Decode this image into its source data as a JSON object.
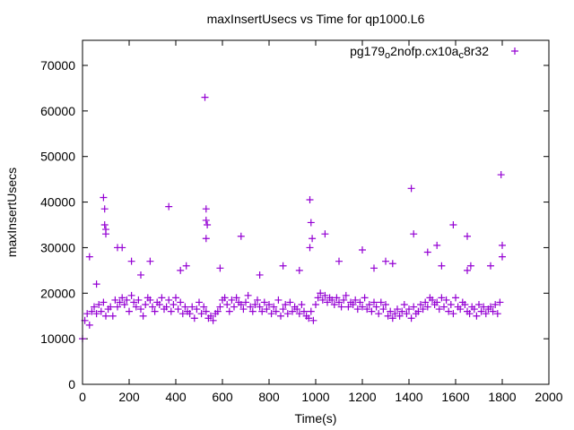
{
  "chart_data": {
    "type": "scatter",
    "title": "maxInsertUsecs vs Time for qp1000.L6",
    "xlabel": "Time(s)",
    "ylabel": "maxInsertUsecs",
    "xlim": [
      0,
      2000
    ],
    "ylim": [
      0,
      75000
    ],
    "xticks": [
      0,
      200,
      400,
      600,
      800,
      1000,
      1200,
      1400,
      1600,
      1800,
      2000
    ],
    "yticks": [
      0,
      10000,
      20000,
      30000,
      40000,
      50000,
      60000,
      70000
    ],
    "grid": false,
    "legend_position": "top-right",
    "series": [
      {
        "name_parts": [
          "pg179",
          "o",
          "2nofp.cx10a",
          "c",
          "8r32"
        ],
        "name": "pg179_o2nofp.cx10a_c8r32",
        "color": "#9400d3",
        "marker": "plus",
        "x_start": 0,
        "x_step": 10,
        "values": [
          10000,
          14000,
          15500,
          13000,
          16000,
          17000,
          15500,
          17500,
          16000,
          18000,
          15000,
          16500,
          17000,
          15000,
          18500,
          17000,
          18000,
          19000,
          17500,
          18500,
          16000,
          19500,
          18000,
          17000,
          18500,
          16500,
          15000,
          17500,
          19000,
          18500,
          17000,
          16000,
          18000,
          17500,
          19000,
          16500,
          17000,
          18500,
          16000,
          17500,
          19000,
          16500,
          18000,
          15500,
          17000,
          16000,
          15500,
          17000,
          14500,
          16500,
          18000,
          15500,
          17000,
          16000,
          14500,
          15000,
          14000,
          15500,
          16000,
          17000,
          18500,
          19000,
          17500,
          16000,
          18500,
          17000,
          19000,
          18000,
          17500,
          16500,
          18000,
          19500,
          17000,
          16000,
          17500,
          18500,
          17000,
          16000,
          18000,
          16500,
          17500,
          15500,
          17000,
          16000,
          18500,
          15000,
          16500,
          17500,
          15500,
          18000,
          16000,
          17000,
          16500,
          15500,
          17500,
          16000,
          15000,
          14500,
          16000,
          14000,
          17500,
          19000,
          20000,
          18500,
          19500,
          18000,
          19000,
          18500,
          17500,
          19000,
          18000,
          17000,
          18500,
          19500,
          17000,
          18000,
          17500,
          18500,
          16500,
          18000,
          17000,
          19000,
          16500,
          17500,
          16000,
          18000,
          17000,
          15500,
          18000,
          16500,
          17500,
          15000,
          16000,
          14500,
          15500,
          16500,
          15000,
          16000,
          17500,
          15500,
          16500,
          14500,
          17000,
          15500,
          16000,
          17500,
          16500,
          18000,
          17000,
          19000,
          18500,
          17500,
          18000,
          16500,
          19000,
          17000,
          18500,
          16000,
          17500,
          15500,
          19000,
          17000,
          16500,
          18000,
          17500,
          16000,
          15500,
          17000,
          16500,
          15000,
          17500,
          16000,
          17000,
          15500,
          16500,
          17000,
          16000,
          17500,
          15500,
          18000
        ],
        "outliers": [
          [
            90,
            41000
          ],
          [
            95,
            38500
          ],
          [
            95,
            35000
          ],
          [
            100,
            34000
          ],
          [
            100,
            33000
          ],
          [
            370,
            39000
          ],
          [
            525,
            63000
          ],
          [
            530,
            38500
          ],
          [
            530,
            36000
          ],
          [
            535,
            35000
          ],
          [
            530,
            32000
          ],
          [
            975,
            40500
          ],
          [
            980,
            35500
          ],
          [
            985,
            32000
          ],
          [
            975,
            30000
          ],
          [
            1410,
            43000
          ],
          [
            1420,
            33000
          ],
          [
            1590,
            35000
          ],
          [
            1650,
            32500
          ],
          [
            1665,
            26000
          ],
          [
            1795,
            46000
          ],
          [
            1800,
            30500
          ],
          [
            1800,
            28000
          ],
          [
            1040,
            33000
          ],
          [
            1200,
            29500
          ],
          [
            1300,
            27000
          ],
          [
            150,
            30000
          ],
          [
            170,
            30000
          ],
          [
            290,
            27000
          ],
          [
            210,
            27000
          ],
          [
            680,
            32500
          ],
          [
            420,
            25000
          ],
          [
            445,
            26000
          ],
          [
            1520,
            30500
          ],
          [
            1540,
            26000
          ],
          [
            1650,
            25000
          ],
          [
            930,
            25000
          ],
          [
            1100,
            27000
          ],
          [
            1250,
            25500
          ],
          [
            1480,
            29000
          ],
          [
            1330,
            26500
          ],
          [
            1750,
            26000
          ],
          [
            590,
            25500
          ],
          [
            860,
            26000
          ],
          [
            30,
            28000
          ],
          [
            60,
            22000
          ],
          [
            250,
            24000
          ],
          [
            760,
            24000
          ]
        ]
      }
    ]
  }
}
